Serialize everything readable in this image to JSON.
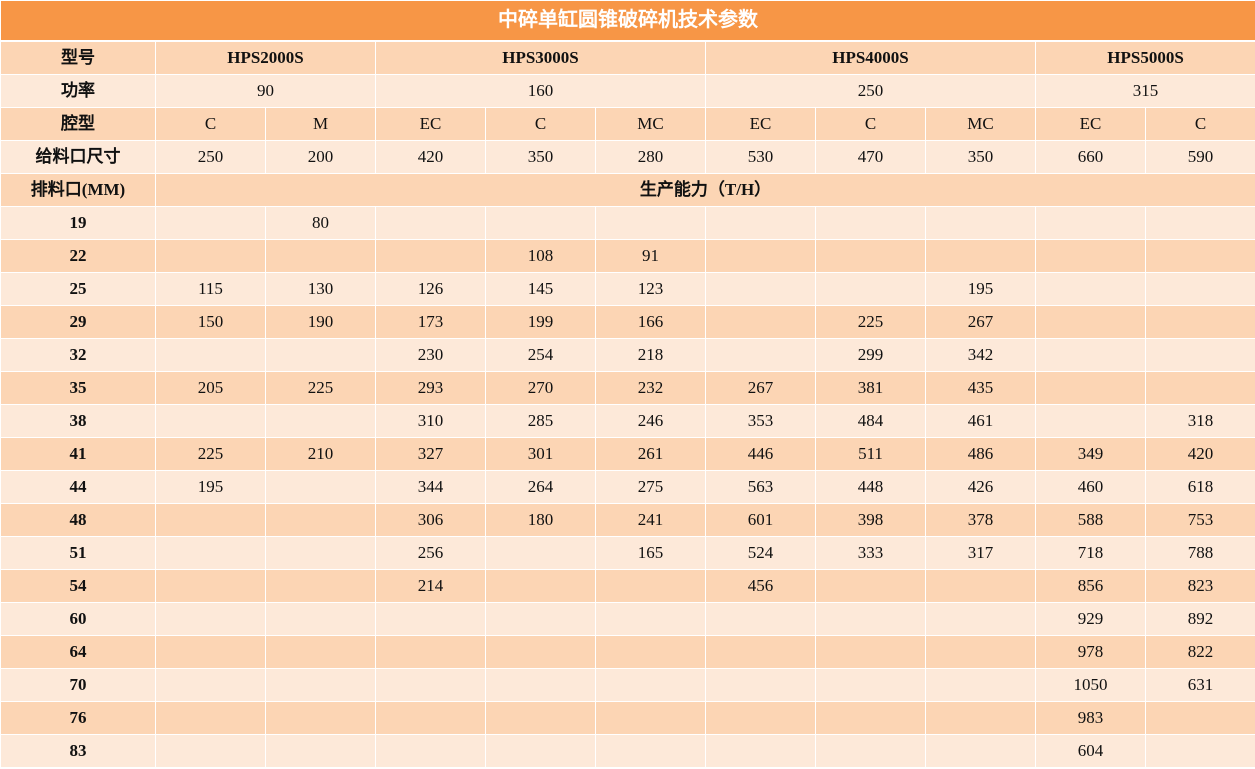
{
  "title": "中碎单缸圆锥破碎机技术参数",
  "colors": {
    "title_bg": "#F79646",
    "row_dark": "#FCD5B4",
    "row_light": "#FDE9D9"
  },
  "header": {
    "model_label": "型号",
    "models": [
      "HPS2000S",
      "HPS3000S",
      "HPS4000S",
      "HPS5000S"
    ],
    "power_label": "功率",
    "powers": [
      "90",
      "160",
      "250",
      "315"
    ],
    "cavity_label": "腔型",
    "cavities": [
      "C",
      "M",
      "EC",
      "C",
      "MC",
      "EC",
      "C",
      "MC",
      "EC",
      "C"
    ],
    "feed_label": "给料口尺寸",
    "feeds": [
      "250",
      "200",
      "420",
      "350",
      "280",
      "530",
      "470",
      "350",
      "660",
      "590"
    ],
    "discharge_label": "排料口(MM)",
    "capacity_label": "生产能力（T/H）"
  },
  "rows": [
    {
      "discharge": "19",
      "values": [
        "",
        "80",
        "",
        "",
        "",
        "",
        "",
        "",
        "",
        ""
      ]
    },
    {
      "discharge": "22",
      "values": [
        "",
        "",
        "",
        "108",
        "91",
        "",
        "",
        "",
        "",
        ""
      ]
    },
    {
      "discharge": "25",
      "values": [
        "115",
        "130",
        "126",
        "145",
        "123",
        "",
        "",
        "195",
        "",
        ""
      ]
    },
    {
      "discharge": "29",
      "values": [
        "150",
        "190",
        "173",
        "199",
        "166",
        "",
        "225",
        "267",
        "",
        ""
      ]
    },
    {
      "discharge": "32",
      "values": [
        "",
        "",
        "230",
        "254",
        "218",
        "",
        "299",
        "342",
        "",
        ""
      ]
    },
    {
      "discharge": "35",
      "values": [
        "205",
        "225",
        "293",
        "270",
        "232",
        "267",
        "381",
        "435",
        "",
        ""
      ]
    },
    {
      "discharge": "38",
      "values": [
        "",
        "",
        "310",
        "285",
        "246",
        "353",
        "484",
        "461",
        "",
        "318"
      ]
    },
    {
      "discharge": "41",
      "values": [
        "225",
        "210",
        "327",
        "301",
        "261",
        "446",
        "511",
        "486",
        "349",
        "420"
      ]
    },
    {
      "discharge": "44",
      "values": [
        "195",
        "",
        "344",
        "264",
        "275",
        "563",
        "448",
        "426",
        "460",
        "618"
      ]
    },
    {
      "discharge": "48",
      "values": [
        "",
        "",
        "306",
        "180",
        "241",
        "601",
        "398",
        "378",
        "588",
        "753"
      ]
    },
    {
      "discharge": "51",
      "values": [
        "",
        "",
        "256",
        "",
        "165",
        "524",
        "333",
        "317",
        "718",
        "788"
      ]
    },
    {
      "discharge": "54",
      "values": [
        "",
        "",
        "214",
        "",
        "",
        "456",
        "",
        "",
        "856",
        "823"
      ]
    },
    {
      "discharge": "60",
      "values": [
        "",
        "",
        "",
        "",
        "",
        "",
        "",
        "",
        "929",
        "892"
      ]
    },
    {
      "discharge": "64",
      "values": [
        "",
        "",
        "",
        "",
        "",
        "",
        "",
        "",
        "978",
        "822"
      ]
    },
    {
      "discharge": "70",
      "values": [
        "",
        "",
        "",
        "",
        "",
        "",
        "",
        "",
        "1050",
        "631"
      ]
    },
    {
      "discharge": "76",
      "values": [
        "",
        "",
        "",
        "",
        "",
        "",
        "",
        "",
        "983",
        ""
      ]
    },
    {
      "discharge": "83",
      "values": [
        "",
        "",
        "",
        "",
        "",
        "",
        "",
        "",
        "604",
        ""
      ]
    }
  ]
}
